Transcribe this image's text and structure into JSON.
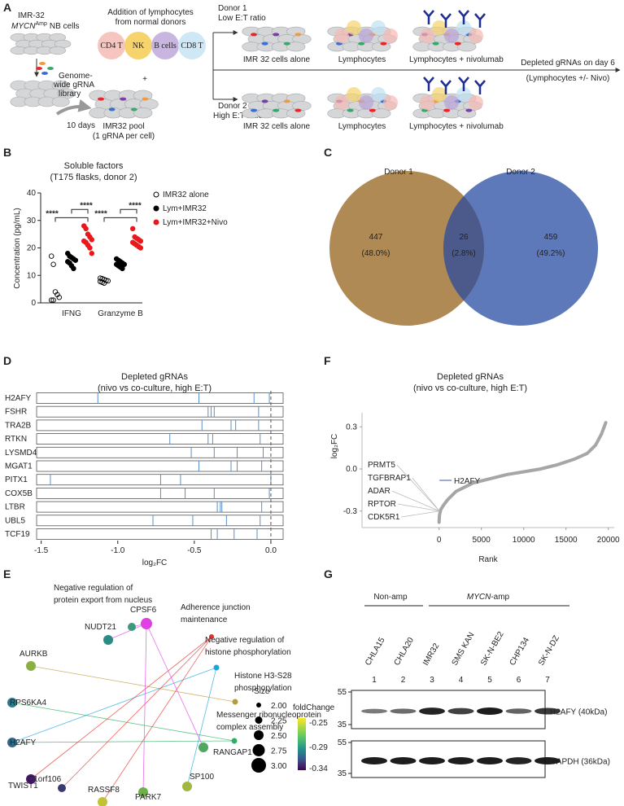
{
  "panel_labels": [
    "A",
    "B",
    "C",
    "D",
    "E",
    "F",
    "G"
  ],
  "panel_a": {
    "cell_line": "IMR-32",
    "gene": "MYCN",
    "gene_sup": "Amp",
    "cell_type": "NB cells",
    "addition": [
      "Addition of lymphocytes",
      "from normal donors"
    ],
    "lymphocytes": [
      "CD4 T",
      "NK",
      "B cells",
      "CD8 T"
    ],
    "plus": "+",
    "library": [
      "Genome-",
      "wide gRNA",
      "library"
    ],
    "duration": "10 days",
    "pool": [
      "IMR32 pool",
      "(1 gRNA per cell)"
    ],
    "donors": [
      {
        "name": "Donor 1",
        "ratio": "Low E:T ratio"
      },
      {
        "name": "Donor 2",
        "ratio": "High E:T ratio"
      }
    ],
    "conditions": [
      "IMR 32 cells alone",
      "Lymphocytes",
      "Lymphocytes +"
    ],
    "drug": "nivolumab",
    "outcome": [
      "Depleted gRNAs on day 6",
      "(Lymphocytes +/- Nivo)"
    ]
  },
  "chart_data": [
    {
      "type": "dotplot",
      "title": "Soluble factors",
      "subtitle": "(T175 flasks, donor 2)",
      "y_label": "Concentration (pg/mL)",
      "categories": [
        "IFNG",
        "Granzyme B"
      ],
      "series": [
        {
          "name": "IMR32 alone",
          "color": "#000000",
          "filled": false,
          "values": [
            [
              17,
              14,
              4,
              3,
              2,
              1,
              1
            ],
            [
              9,
              8.8,
              8.5,
              8.2,
              8,
              7.8,
              7.5,
              7.2
            ]
          ]
        },
        {
          "name": "Lym+IMR32",
          "color": "#000000",
          "filled": true,
          "values": [
            [
              18,
              17,
              16.5,
              16,
              15.5,
              15,
              14.5,
              13.5,
              12.5
            ],
            [
              16,
              15.5,
              15,
              14.5,
              14,
              14,
              13.5,
              13,
              12.5
            ]
          ]
        },
        {
          "name": "Lym+IMR32+Nivo",
          "color": "#e8191c",
          "filled": true,
          "values": [
            [
              28,
              27,
              25,
              24,
              23,
              22.5,
              22,
              21,
              20,
              18
            ],
            [
              27,
              24,
              23.5,
              23,
              22.5,
              22,
              21.5,
              21,
              20.5,
              20
            ]
          ]
        }
      ],
      "ylim": [
        0,
        40
      ],
      "yticks": [
        0,
        10,
        20,
        30,
        40
      ],
      "annotations": [
        "****",
        "****",
        "****",
        "****"
      ]
    },
    {
      "type": "venn",
      "sets": [
        {
          "name": "Donor 1",
          "color": "#b08a55"
        },
        {
          "name": "Donor 2",
          "color": "#5e79b9"
        }
      ],
      "overlap_color": "#4b5a8b",
      "values": [
        447,
        26,
        459
      ],
      "share_labels": [
        "(48.0%)",
        "(2.8%)",
        "(49.2%)"
      ]
    },
    {
      "type": "barcode",
      "title": "Depleted gRNAs",
      "subtitle": "(nivo vs co-culture, high E:T)",
      "x_label": "log₂FC",
      "categories": [
        "H2AFY",
        "FSHR",
        "TRA2B",
        "RTKN",
        "LYSMD4",
        "MGAT1",
        "PITX1",
        "COX5B",
        "LTBR",
        "UBL5",
        "TCF19"
      ],
      "values": [
        [
          -1.13,
          -0.47,
          -0.11,
          -0.01
        ],
        [
          -0.41,
          -0.39,
          -0.37,
          -0.08
        ],
        [
          -0.45,
          -0.26,
          -0.23,
          -0.08
        ],
        [
          -0.66,
          -0.41,
          -0.38,
          -0.07
        ],
        [
          -0.52,
          -0.37,
          -0.22,
          -0.05
        ],
        [
          -0.47,
          -0.26,
          -0.22,
          -0.06
        ],
        [
          -1.44,
          -0.72,
          -0.59,
          0.0
        ],
        [
          -0.72,
          -0.56,
          -0.37,
          -0.01
        ],
        [
          -0.35,
          -0.33,
          -0.32,
          -0.06
        ],
        [
          -0.77,
          -0.51,
          -0.29,
          -0.07
        ],
        [
          -0.39,
          -0.35,
          -0.24,
          -0.09
        ]
      ],
      "color": "#5b8fc9",
      "xlim": [
        -1.53,
        0.08
      ],
      "xticks": [
        -1.5,
        {
          "value": -1,
          "label": "-1.0"
        },
        -0.5,
        {
          "value": 0,
          "label": "0.0"
        }
      ],
      "reference_line": 0
    },
    {
      "type": "line",
      "title": "Depleted gRNAs",
      "subtitle": "(nivo vs co-culture, high E:T)",
      "x_label": "Rank",
      "y_label": "log₂FC",
      "x": [
        0,
        50,
        200,
        500,
        1000,
        2000,
        4000,
        6000,
        8000,
        10000,
        12000,
        14000,
        16000,
        17500,
        18500,
        19200,
        19700
      ],
      "values": [
        -0.38,
        -0.33,
        -0.29,
        -0.26,
        -0.22,
        -0.16,
        -0.1,
        -0.07,
        -0.04,
        -0.02,
        0.0,
        0.03,
        0.07,
        0.11,
        0.17,
        0.25,
        0.33
      ],
      "color": "#a6a6a6",
      "xlim": [
        -9100,
        20700
      ],
      "ylim": [
        -0.4,
        0.4
      ],
      "xticks": [
        0,
        5000,
        10000,
        15000,
        20000
      ],
      "yticks": [
        -0.3,
        {
          "value": 0,
          "label": "0.0"
        },
        0.3
      ],
      "annotations": [
        "PRMT5",
        "TGFBRAP1",
        "ADAR",
        "RPTOR",
        "CDK5R1"
      ],
      "highlight": {
        "label": "H2AFY",
        "color": "#3a5a99"
      }
    }
  ],
  "panel_e": {
    "terms": [
      {
        "label": [
          "Negative regulation of",
          "protein export from nucleus"
        ],
        "color": "#e03fe3"
      },
      {
        "label": [
          "Adherence junction",
          "maintenance"
        ],
        "color": "#e8302a"
      },
      {
        "label": [
          "Negative regulation of",
          "histone phosphorylation"
        ],
        "color": "#1aa6dc"
      },
      {
        "label": [
          "Histone H3-S28",
          "phosphorylation"
        ],
        "color": "#b89a3c"
      },
      {
        "label": [
          "Messenger ribonucleoprotein",
          "complex assembly"
        ],
        "color": "#2eb062"
      }
    ],
    "genes": [
      "NUDT21",
      "CPSF6",
      "AURKB",
      "RPS6KA4",
      "H2AFY",
      "TWIST1",
      "C1orf106",
      "RASSF8",
      "PARK7",
      "SP100",
      "RANGAP1"
    ],
    "size_title": "Size",
    "size_labels": [
      "2.00",
      "2.25",
      "2.50",
      "2.75",
      "3.00"
    ],
    "color_title": "foldChange",
    "color_labels": [
      "-0.25",
      "-0.29",
      "-0.34"
    ]
  },
  "panel_g": {
    "groups": [
      {
        "label": "Non-amp"
      },
      {
        "label_italic": "MYCN",
        "label": "-amp"
      }
    ],
    "cell_lines": [
      "CHLA15",
      "CHLA20",
      "IMR32",
      "SMS KAN",
      "SK-N-BE2",
      "CHP134",
      "SK-N-DZ"
    ],
    "lanes": [
      "1",
      "2",
      "3",
      "4",
      "5",
      "6",
      "7"
    ],
    "markers": [
      "55",
      "35"
    ],
    "blots": [
      "H2AFY (40kDa)",
      "GAPDH (36kDa)"
    ]
  }
}
